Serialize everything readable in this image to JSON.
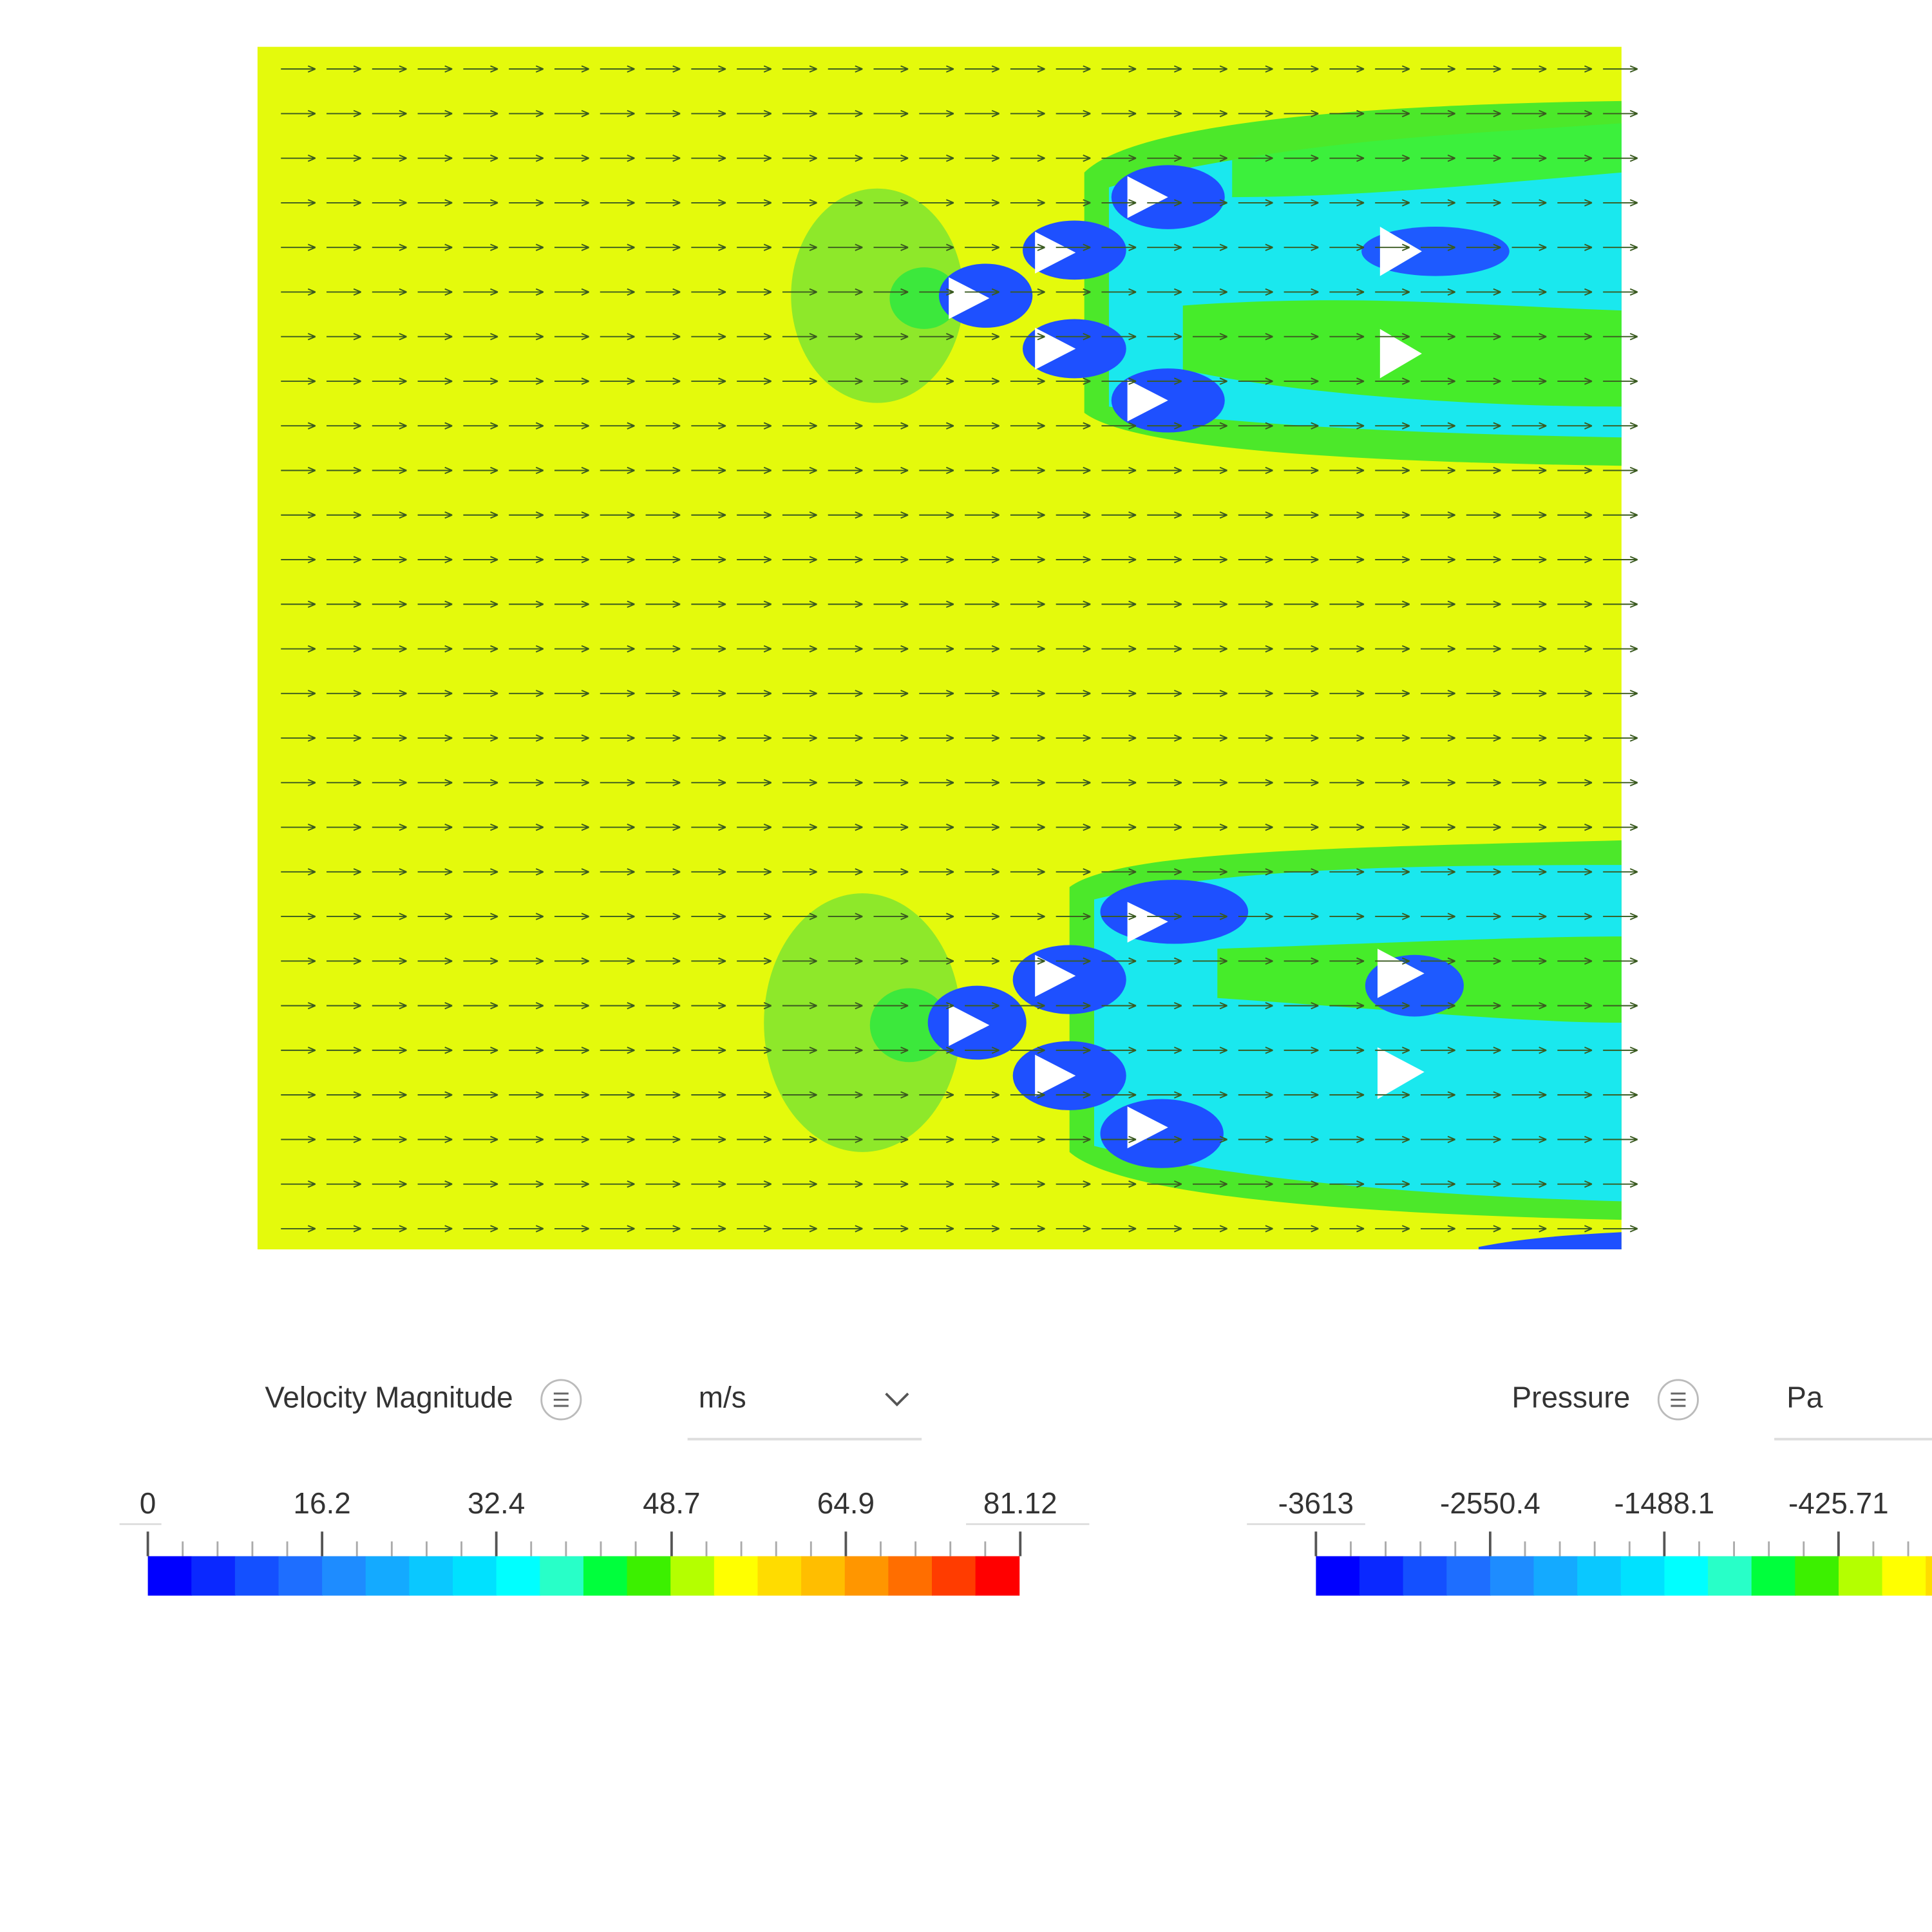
{
  "legends": [
    {
      "title": "Velocity Magnitude",
      "unit": "m/s",
      "ticks": [
        0,
        16.2,
        32.4,
        48.7,
        64.9,
        81.12
      ],
      "colors": [
        "#0000ff",
        "#0a28ff",
        "#1450ff",
        "#1e6eff",
        "#1e8cff",
        "#14aaff",
        "#0ac8ff",
        "#00e1ff",
        "#00ffff",
        "#28ffc8",
        "#00ff3c",
        "#3cf000",
        "#b4ff00",
        "#ffff00",
        "#ffdc00",
        "#ffbe00",
        "#ff9600",
        "#ff6e00",
        "#ff3c00",
        "#ff0000"
      ]
    },
    {
      "title": "Pressure",
      "unit": "Pa",
      "ticks": [
        -3613,
        -2550.4,
        -1488.1,
        -425.71
      ],
      "colors": [
        "#0000ff",
        "#0a28ff",
        "#1450ff",
        "#1e6eff",
        "#1e8cff",
        "#14aaff",
        "#0ac8ff",
        "#00e1ff",
        "#00ffff",
        "#28ffc8",
        "#00ff3c",
        "#3cf000",
        "#b4ff00",
        "#ffff00",
        "#ffdc00",
        "#ffbe00",
        "#ff9600",
        "#ff6e00",
        "#ff3c00",
        "#ff0000"
      ]
    }
  ]
}
